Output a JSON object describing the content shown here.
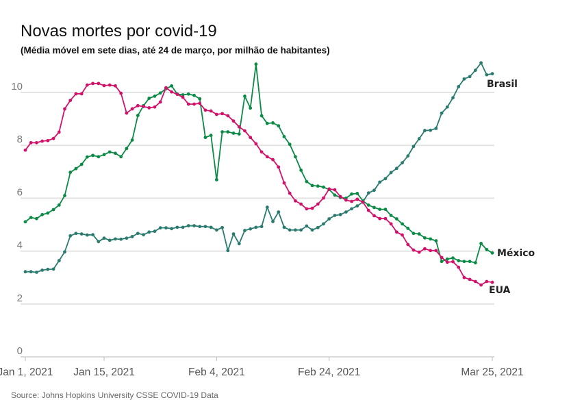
{
  "chart_data": {
    "type": "line",
    "title": "Novas mortes por covid-19",
    "subtitle": "(Média móvel em sete dias, até 24 de março, por milhão de habitantes)",
    "source": "Source: Johns Hopkins University CSSE COVID-19 Data",
    "xlabel": "",
    "ylabel": "",
    "ylim": [
      0,
      11
    ],
    "yticks": [
      0,
      2,
      4,
      6,
      8,
      10
    ],
    "x_start": "2021-01-01",
    "x_count": 84,
    "xticks": [
      {
        "index": 0,
        "label": "Jan 1, 2021"
      },
      {
        "index": 14,
        "label": "Jan 15, 2021"
      },
      {
        "index": 34,
        "label": "Feb 4, 2021"
      },
      {
        "index": 54,
        "label": "Feb 24, 2021"
      },
      {
        "index": 83,
        "label": "Mar 25, 2021"
      }
    ],
    "grid": true,
    "series": [
      {
        "name": "Brasil",
        "color": "#2a7b6f",
        "values": [
          3.22,
          3.22,
          3.2,
          3.28,
          3.31,
          3.32,
          3.64,
          3.97,
          4.58,
          4.67,
          4.65,
          4.61,
          4.62,
          4.36,
          4.49,
          4.41,
          4.46,
          4.45,
          4.49,
          4.55,
          4.67,
          4.62,
          4.72,
          4.75,
          4.88,
          4.88,
          4.85,
          4.9,
          4.9,
          4.96,
          4.96,
          4.93,
          4.93,
          4.9,
          4.8,
          4.89,
          4.02,
          4.65,
          4.28,
          4.78,
          4.84,
          4.9,
          4.93,
          5.66,
          5.12,
          5.48,
          4.9,
          4.8,
          4.8,
          4.8,
          4.95,
          4.8,
          4.89,
          5.03,
          5.22,
          5.35,
          5.38,
          5.48,
          5.6,
          5.71,
          5.86,
          6.2,
          6.3,
          6.61,
          6.74,
          6.97,
          7.13,
          7.34,
          7.6,
          7.96,
          8.25,
          8.56,
          8.57,
          8.64,
          9.22,
          9.45,
          9.8,
          10.22,
          10.51,
          10.6,
          10.84,
          11.12,
          10.67,
          10.71
        ]
      },
      {
        "name": "México",
        "color": "#0a8a45",
        "values": [
          5.11,
          5.27,
          5.23,
          5.38,
          5.44,
          5.57,
          5.74,
          6.1,
          6.98,
          7.12,
          7.28,
          7.56,
          7.62,
          7.57,
          7.65,
          7.75,
          7.7,
          7.57,
          7.88,
          8.2,
          9.13,
          9.5,
          9.78,
          9.86,
          9.98,
          10.14,
          10.25,
          9.94,
          9.91,
          9.94,
          9.89,
          9.76,
          8.3,
          8.38,
          6.7,
          8.51,
          8.51,
          8.46,
          8.43,
          9.86,
          9.41,
          11.07,
          9.12,
          8.83,
          8.85,
          8.74,
          8.33,
          8.04,
          7.57,
          7.06,
          6.63,
          6.48,
          6.46,
          6.42,
          6.33,
          6.12,
          6.03,
          6.0,
          6.16,
          6.18,
          5.9,
          5.74,
          5.65,
          5.58,
          5.58,
          5.35,
          5.22,
          5.03,
          4.86,
          4.67,
          4.65,
          4.5,
          4.46,
          4.39,
          3.61,
          3.7,
          3.74,
          3.64,
          3.61,
          3.61,
          3.56,
          4.29,
          4.06,
          3.93
        ]
      },
      {
        "name": "EUA",
        "color": "#d0126a",
        "values": [
          7.82,
          8.1,
          8.1,
          8.16,
          8.18,
          8.26,
          8.5,
          9.38,
          9.7,
          9.95,
          9.95,
          10.28,
          10.34,
          10.34,
          10.26,
          10.28,
          10.25,
          9.97,
          9.22,
          9.38,
          9.5,
          9.47,
          9.42,
          9.45,
          9.64,
          10.18,
          10.02,
          9.93,
          9.82,
          9.56,
          9.56,
          9.59,
          9.33,
          9.3,
          9.17,
          9.2,
          9.12,
          8.92,
          8.7,
          8.55,
          8.3,
          8.06,
          7.75,
          7.57,
          7.46,
          7.18,
          6.58,
          6.19,
          5.9,
          5.78,
          5.6,
          5.62,
          5.78,
          6.01,
          6.35,
          6.32,
          6.06,
          5.93,
          5.88,
          5.96,
          5.85,
          5.54,
          5.34,
          5.23,
          5.23,
          5.03,
          4.72,
          4.61,
          4.25,
          4.04,
          3.96,
          4.09,
          4.02,
          4.02,
          3.76,
          3.58,
          3.6,
          3.39,
          3.0,
          2.93,
          2.85,
          2.72,
          2.85,
          2.82
        ]
      }
    ]
  }
}
